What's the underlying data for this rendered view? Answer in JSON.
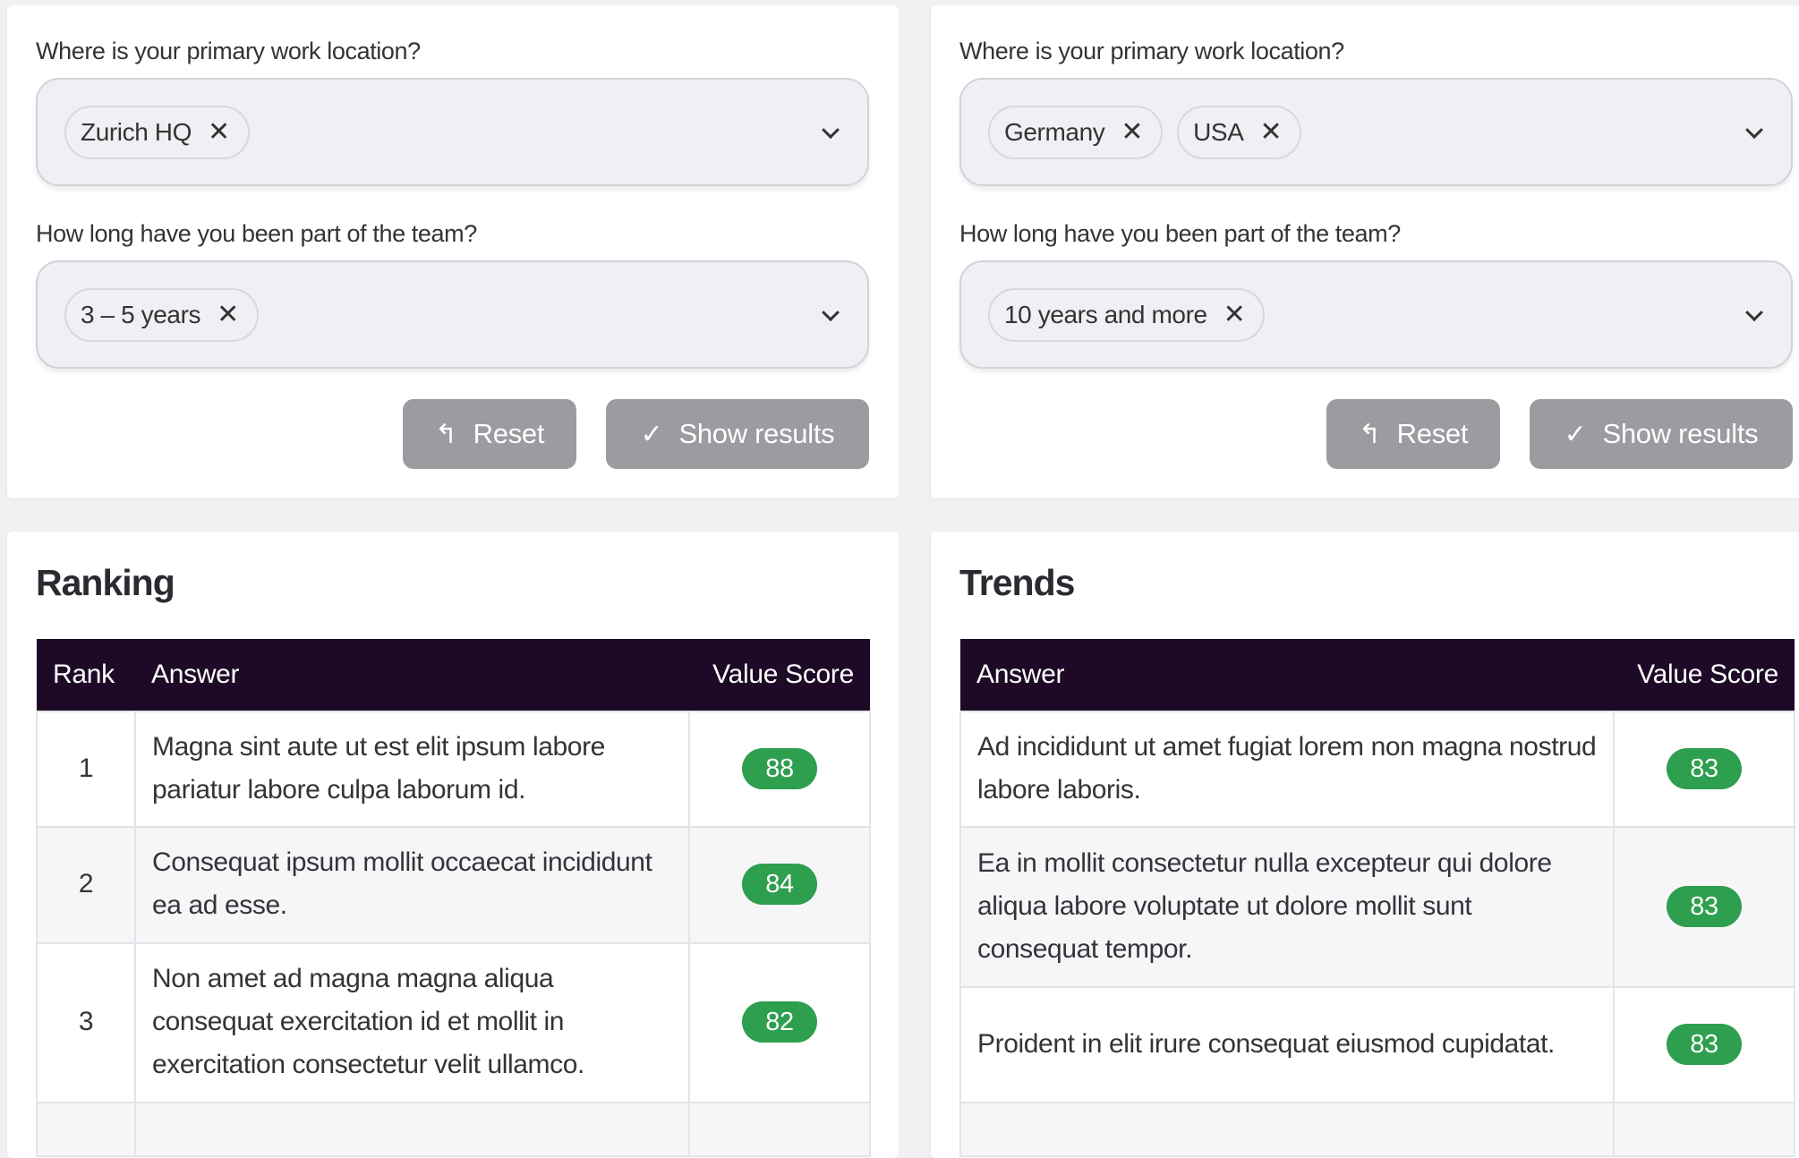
{
  "filters_left": {
    "location_label": "Where is your primary work location?",
    "location_chips": [
      "Zurich HQ"
    ],
    "tenure_label": "How long have you been part of the team?",
    "tenure_chips": [
      "3 – 5 years"
    ],
    "reset_label": "Reset",
    "show_label": "Show results"
  },
  "filters_right": {
    "location_label": "Where is your primary work location?",
    "location_chips": [
      "Germany",
      "USA"
    ],
    "tenure_label": "How long have you been part of the team?",
    "tenure_chips": [
      "10 years and more"
    ],
    "reset_label": "Reset",
    "show_label": "Show results"
  },
  "icons": {
    "chip_remove": "close-icon",
    "dropdown": "chevron-down-icon",
    "reset": "undo-arrow-icon",
    "show": "check-icon"
  },
  "colors": {
    "header": "#1e0a26",
    "badge": "#2e9e4f",
    "button": "#9b9ba0"
  },
  "ranking": {
    "title": "Ranking",
    "columns": [
      "Rank",
      "Answer",
      "Value Score"
    ],
    "rows": [
      {
        "rank": "1",
        "answer": "Magna sint aute ut est elit ipsum labore pariatur labore culpa laborum id.",
        "score": "88"
      },
      {
        "rank": "2",
        "answer": "Consequat ipsum mollit occaecat incididunt ea ad esse.",
        "score": "84"
      },
      {
        "rank": "3",
        "answer": "Non amet ad magna magna aliqua consequat exercitation id et mollit in exercitation consectetur velit ullamco.",
        "score": "82"
      }
    ]
  },
  "trends": {
    "title": "Trends",
    "columns": [
      "Answer",
      "Value Score"
    ],
    "rows": [
      {
        "answer": "Ad incididunt ut amet fugiat lorem non magna nostrud labore laboris.",
        "score": "83"
      },
      {
        "answer": "Ea in mollit consectetur nulla excepteur qui dolore aliqua labore voluptate ut dolore mollit sunt consequat tempor.",
        "score": "83"
      },
      {
        "answer": "Proident in elit irure consequat eiusmod cupidatat.",
        "score": "83"
      }
    ]
  }
}
